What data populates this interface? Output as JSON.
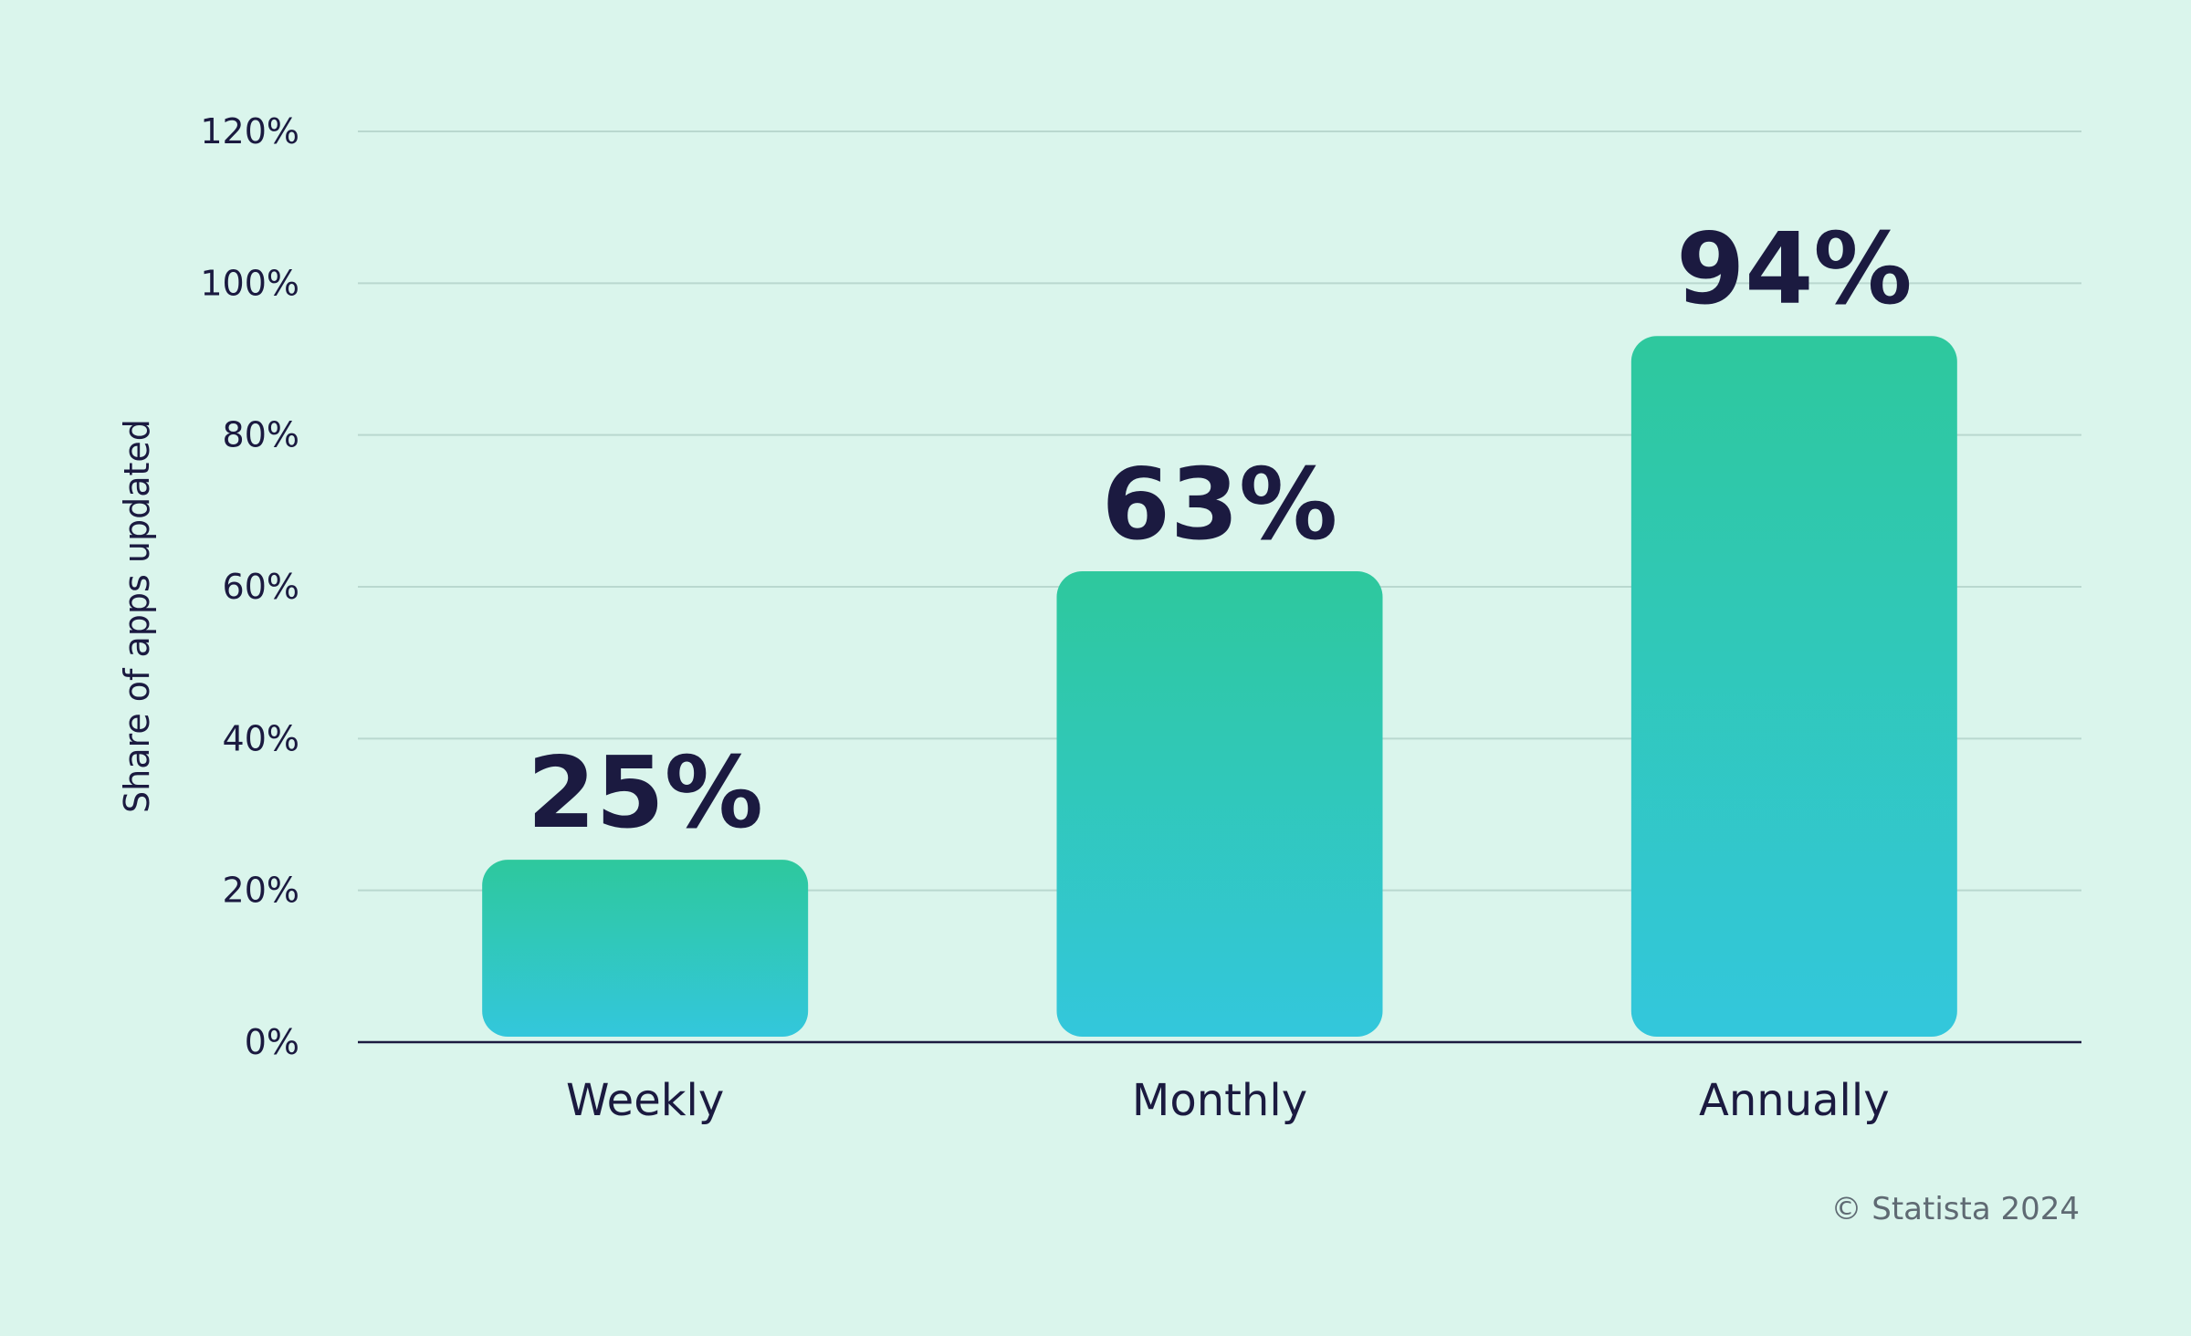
{
  "chart_data": {
    "type": "bar",
    "categories": [
      "Weekly",
      "Monthly",
      "Annually"
    ],
    "values": [
      25,
      63,
      94
    ],
    "data_labels": [
      "25%",
      "63%",
      "94%"
    ],
    "ylabel": "Share of apps updated",
    "ylim": [
      0,
      120
    ],
    "yticks": [
      0,
      20,
      40,
      60,
      80,
      100,
      120
    ],
    "ytick_labels": [
      "0%",
      "20%",
      "40%",
      "60%",
      "80%",
      "100%",
      "120%"
    ],
    "grid": true,
    "legend": "none",
    "colors": {
      "background": "#daf5ec",
      "bar_top": "#2ec89d",
      "bar_bottom": "#33c7dc",
      "text": "#1b1a40",
      "gridline": "#b9d8cf",
      "axis": "#1b1a40",
      "source_text": "#5f6a73"
    }
  },
  "source": "© Statista 2024"
}
